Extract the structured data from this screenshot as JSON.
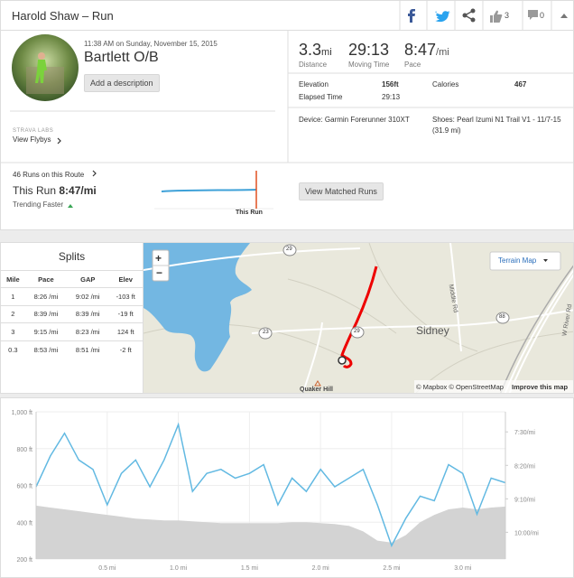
{
  "header": {
    "title": "Harold Shaw – Run",
    "kudos_count": "3",
    "comment_count": "0"
  },
  "activity": {
    "datetime": "11:38 AM on Sunday, November 15, 2015",
    "name": "Bartlett O/B",
    "add_description": "Add a description",
    "labs": "STRAVA LABS",
    "flybys": "View Flybys"
  },
  "stats": {
    "distance": {
      "value": "3.3",
      "unit": "mi",
      "label": "Distance"
    },
    "moving_time": {
      "value": "29:13",
      "label": "Moving Time"
    },
    "pace": {
      "value": "8:47",
      "unit": "/mi",
      "label": "Pace"
    },
    "elevation": {
      "label": "Elevation",
      "value": "156ft"
    },
    "calories": {
      "label": "Calories",
      "value": "467"
    },
    "elapsed": {
      "label": "Elapsed Time",
      "value": "29:13"
    },
    "device": "Device: Garmin Forerunner 310XT",
    "shoes": [
      "Shoes: Pearl Izumi N1 Trail V1 - 11/7-15",
      "(31.9 mi)"
    ]
  },
  "route": {
    "runs": "46 Runs on this Route",
    "this_run": "This Run",
    "this_pace": "8:47/mi",
    "trend": "Trending Faster",
    "marker": "This Run",
    "button": "View Matched Runs"
  },
  "splits": {
    "title": "Splits",
    "columns": [
      "Mile",
      "Pace",
      "GAP",
      "Elev"
    ],
    "rows": [
      [
        "1",
        "8:26 /mi",
        "9:02 /mi",
        "-103 ft"
      ],
      [
        "2",
        "8:39 /mi",
        "8:39 /mi",
        "-19 ft"
      ],
      [
        "3",
        "9:15 /mi",
        "8:23 /mi",
        "124 ft"
      ],
      [
        "0.3",
        "8:53 /mi",
        "8:51 /mi",
        "-2 ft"
      ]
    ]
  },
  "map": {
    "zoom_in": "+",
    "zoom_out": "−",
    "layer": "Terrain Map",
    "town": "Sidney",
    "hill": "Quaker Hill",
    "roads": [
      "Middle Rd",
      "W River Rd"
    ],
    "shields": [
      "29",
      "23",
      "29",
      "88"
    ],
    "attribution": "© Mapbox © OpenStreetMap",
    "improve": "Improve this map"
  },
  "elevation_chart": {
    "type": "line",
    "x": [
      0,
      0.1,
      0.2,
      0.3,
      0.4,
      0.5,
      0.6,
      0.7,
      0.8,
      0.9,
      1.0,
      1.1,
      1.2,
      1.3,
      1.4,
      1.5,
      1.6,
      1.7,
      1.8,
      1.9,
      2.0,
      2.1,
      2.2,
      2.3,
      2.4,
      2.5,
      2.6,
      2.7,
      2.8,
      2.9,
      3.0,
      3.1,
      3.2,
      3.3
    ],
    "series": [
      {
        "color": "#d3d3d3",
        "fill": true,
        "values": [
          490,
          480,
          470,
          460,
          450,
          440,
          430,
          420,
          415,
          410,
          410,
          405,
          400,
          395,
          395,
          395,
          395,
          395,
          400,
          400,
          395,
          390,
          380,
          350,
          300,
          290,
          330,
          400,
          440,
          470,
          480,
          470,
          480,
          485
        ]
      },
      {
        "color": "#62b9e2",
        "axis": "y2",
        "values": [
          532,
          486,
          452,
          492,
          506,
          559,
          512,
          492,
          532,
          492,
          439,
          539,
          512,
          506,
          519,
          512,
          499,
          559,
          519,
          539,
          506,
          532,
          519,
          506,
          559,
          620,
          579,
          546,
          553,
          499,
          512,
          573,
          519,
          526
        ]
      }
    ],
    "xlim": [
      0,
      3.3
    ],
    "xticks": [
      {
        "value": 0.5,
        "label": "0.5 mi"
      },
      {
        "value": 1.0,
        "label": "1.0 mi"
      },
      {
        "value": 1.5,
        "label": "1.5 mi"
      },
      {
        "value": 2.0,
        "label": "2.0 mi"
      },
      {
        "value": 2.5,
        "label": "2.5 mi"
      },
      {
        "value": 3.0,
        "label": "3.0 mi"
      }
    ],
    "ylim": [
      200,
      1000
    ],
    "yticks": [
      {
        "value": 200,
        "label": "200 ft"
      },
      {
        "value": 400,
        "label": "400 ft"
      },
      {
        "value": 600,
        "label": "600 ft"
      },
      {
        "value": 800,
        "label": "800 ft"
      },
      {
        "value": 1000,
        "label": "1,000 ft"
      }
    ],
    "y2lim": [
      640,
      420
    ],
    "y2ticks": [
      {
        "value": 450,
        "label": "7:30/mi"
      },
      {
        "value": 500,
        "label": "8:20/mi"
      },
      {
        "value": 550,
        "label": "9:10/mi"
      },
      {
        "value": 600,
        "label": "10:00/mi"
      }
    ],
    "grid": true
  }
}
